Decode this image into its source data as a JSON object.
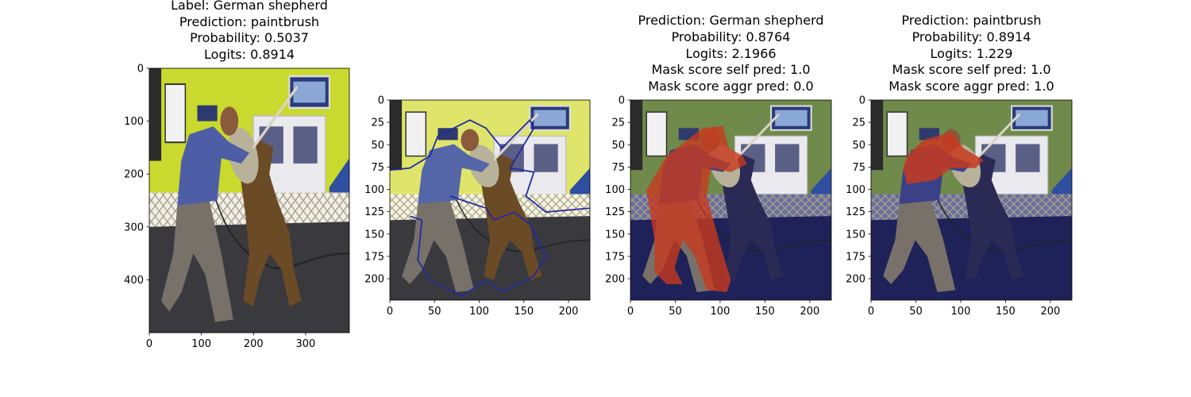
{
  "chart_data": [
    {
      "type": "image",
      "title_lines": [
        "Label: German shepherd",
        "Prediction: paintbrush",
        "Probability: 0.5037",
        "Logits: 0.8914"
      ],
      "xlim": [
        0,
        384
      ],
      "ylim": [
        500,
        0
      ],
      "xticks": [
        0,
        100,
        200,
        300
      ],
      "yticks": [
        0,
        100,
        200,
        300,
        400
      ],
      "overlay": "none",
      "colors": {
        "wall": "#c9d92e",
        "floor": "#3a3a3e",
        "lattice": "#f2efe6",
        "shirt": "#4d5ea6",
        "dog": "#6b4a26"
      }
    },
    {
      "type": "image",
      "title_lines": [],
      "xlim": [
        0,
        224
      ],
      "ylim": [
        224,
        0
      ],
      "xticks": [
        0,
        50,
        100,
        150,
        200
      ],
      "yticks": [
        0,
        25,
        50,
        75,
        100,
        125,
        150,
        175,
        200
      ],
      "overlay": "contour",
      "colors": {
        "wall": "#dfe56a",
        "floor": "#3a3a3e",
        "lattice": "#f6f3dc",
        "shirt": "#5566a8",
        "dog": "#6b4a26",
        "contour": "#1f2aa0"
      }
    },
    {
      "type": "image",
      "title_lines": [
        "Prediction: German shepherd",
        "Probability: 0.8764",
        "Logits: 2.1966",
        "Mask score self pred: 1.0",
        "Mask score aggr pred: 0.0"
      ],
      "xlim": [
        0,
        224
      ],
      "ylim": [
        224,
        0
      ],
      "xticks": [
        0,
        50,
        100,
        150,
        200
      ],
      "yticks": [
        0,
        25,
        50,
        75,
        100,
        125,
        150,
        175,
        200
      ],
      "overlay": "heat-body",
      "colors": {
        "wall": "#6f8a4a",
        "floor": "#1e2258",
        "lattice": "#6a6f9a",
        "shirt": "#3b4189",
        "dog": "#2b2a55",
        "heat": "#c8391e"
      }
    },
    {
      "type": "image",
      "title_lines": [
        "Prediction: paintbrush",
        "Probability: 0.8914",
        "Logits: 1.229",
        "Mask score self pred: 1.0",
        "Mask score aggr pred: 1.0"
      ],
      "xlim": [
        0,
        224
      ],
      "ylim": [
        224,
        0
      ],
      "xticks": [
        0,
        50,
        100,
        150,
        200
      ],
      "yticks": [
        0,
        25,
        50,
        75,
        100,
        125,
        150,
        175,
        200
      ],
      "overlay": "heat-arm",
      "colors": {
        "wall": "#6f8a4a",
        "floor": "#1e2258",
        "lattice": "#6a6f9a",
        "shirt": "#3b4189",
        "dog": "#2b2a55",
        "heat": "#c8391e"
      }
    }
  ]
}
